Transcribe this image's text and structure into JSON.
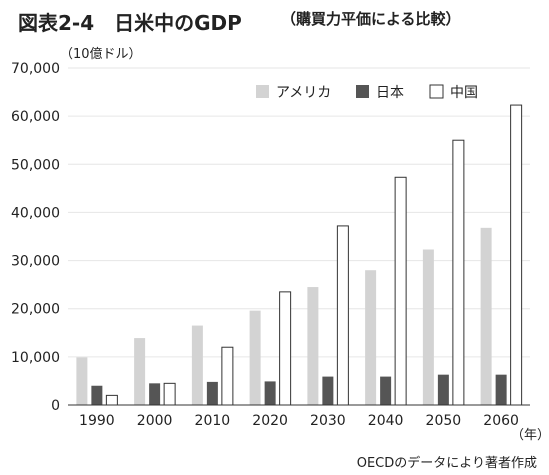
{
  "figure": {
    "title": "図表2-4　日米中のGDP",
    "title_note": "（購買力平価による比較）",
    "unit_label": "（10億ドル）",
    "x_unit": "（年）",
    "source": "OECDのデータにより著者作成"
  },
  "chart_data": {
    "type": "bar",
    "categories": [
      "1990",
      "2000",
      "2010",
      "2020",
      "2030",
      "2040",
      "2050",
      "2060"
    ],
    "series": [
      {
        "name": "アメリカ",
        "color": "#d3d3d3",
        "values": [
          9900,
          13900,
          16500,
          19600,
          24500,
          28000,
          32300,
          36800
        ]
      },
      {
        "name": "日本",
        "color": "#555555",
        "values": [
          4000,
          4500,
          4800,
          4900,
          5900,
          5900,
          6300,
          6300
        ]
      },
      {
        "name": "中国",
        "color": "#ffffff",
        "values": [
          2000,
          4500,
          12000,
          23500,
          37200,
          47300,
          55000,
          62300
        ]
      }
    ],
    "ylim": [
      0,
      70000
    ],
    "yticks": [
      "0",
      "10,000",
      "20,000",
      "30,000",
      "40,000",
      "50,000",
      "60,000",
      "70,000"
    ],
    "grid": "horizontal",
    "legend_position": "top-right"
  }
}
